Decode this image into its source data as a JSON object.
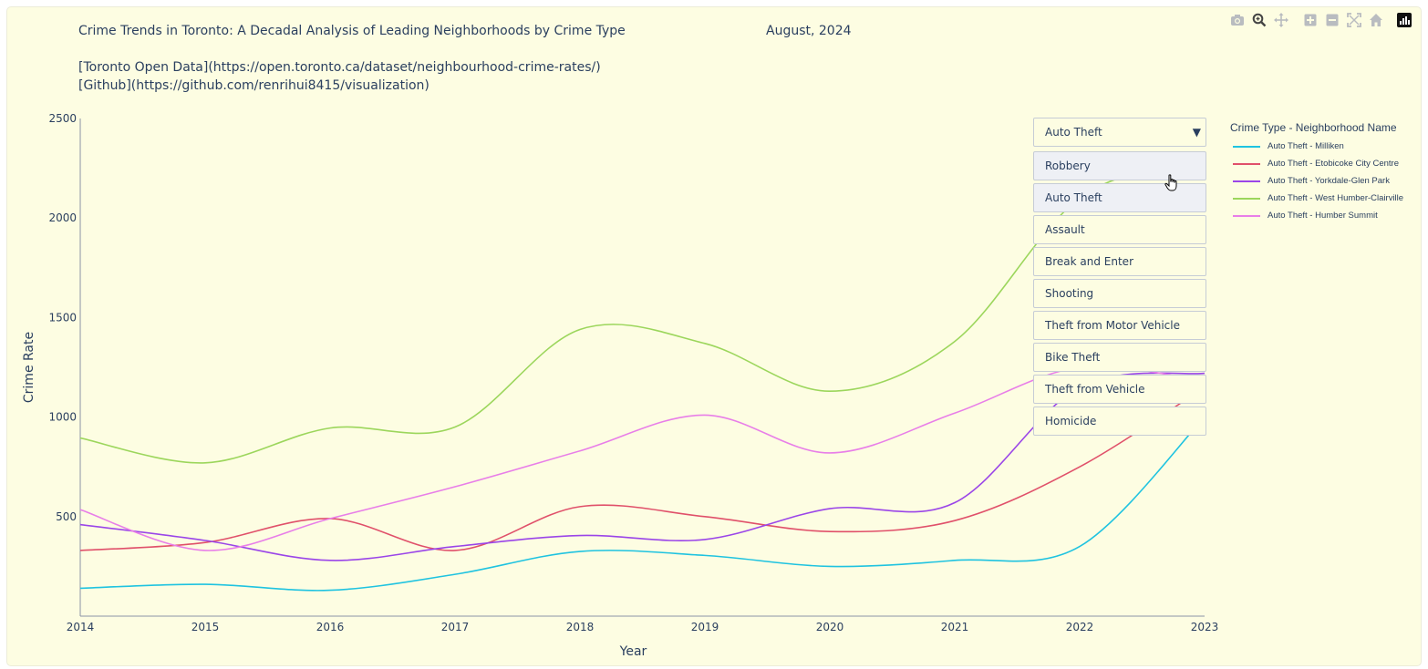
{
  "page": {
    "title": "Crime Trends in Toronto: A Decadal Analysis of Leading Neighborhoods by Crime Type",
    "date": "August, 2024",
    "link1": "[Toronto Open Data](https://open.toronto.ca/dataset/neighbourhood-crime-rates/)",
    "link2": "[Github](https://github.com/renrihui8415/visualization)"
  },
  "modebar": {
    "icons": [
      "camera-icon",
      "zoom-icon",
      "pan-icon",
      "zoom-in-icon",
      "zoom-out-icon",
      "autoscale-icon",
      "home-icon",
      "plotly-logo-icon"
    ]
  },
  "dropdown": {
    "selected": "Auto Theft",
    "options": [
      "Robbery",
      "Auto Theft",
      "Assault",
      "Break and Enter",
      "Shooting",
      "Theft from Motor Vehicle",
      "Bike Theft",
      "Theft from Vehicle",
      "Homicide"
    ],
    "hovered": "Robbery"
  },
  "legend": {
    "title": "Crime Type - Neighborhood Name"
  },
  "chart_data": {
    "type": "line",
    "xlabel": "Year",
    "ylabel": "Crime Rate",
    "x": [
      2014,
      2015,
      2016,
      2017,
      2018,
      2019,
      2020,
      2021,
      2022,
      2023
    ],
    "xlim": [
      2014,
      2023
    ],
    "ylim": [
      0,
      2500
    ],
    "yticks": [
      500,
      1000,
      1500,
      2000,
      2500
    ],
    "grid": false,
    "legend_position": "right",
    "series": [
      {
        "name": "Auto Theft - Milliken",
        "color": "#1fc3e0",
        "values": [
          140,
          160,
          130,
          210,
          325,
          305,
          250,
          280,
          350,
          1000
        ]
      },
      {
        "name": "Auto Theft - Etobicoke City Centre",
        "color": "#e0506a",
        "values": [
          330,
          370,
          490,
          330,
          550,
          500,
          425,
          480,
          750,
          1150
        ]
      },
      {
        "name": "Auto Theft - Yorkdale-Glen Park",
        "color": "#9a45e8",
        "values": [
          460,
          380,
          280,
          350,
          405,
          385,
          540,
          570,
          1150,
          1220
        ]
      },
      {
        "name": "Auto Theft - West Humber-Clairville",
        "color": "#9cd65c",
        "values": [
          895,
          770,
          945,
          950,
          1440,
          1370,
          1130,
          1380,
          2100,
          2300
        ]
      },
      {
        "name": "Auto Theft - Humber Summit",
        "color": "#e87ee8",
        "values": [
          535,
          330,
          490,
          650,
          830,
          1010,
          820,
          1020,
          1250,
          1180
        ]
      }
    ]
  }
}
